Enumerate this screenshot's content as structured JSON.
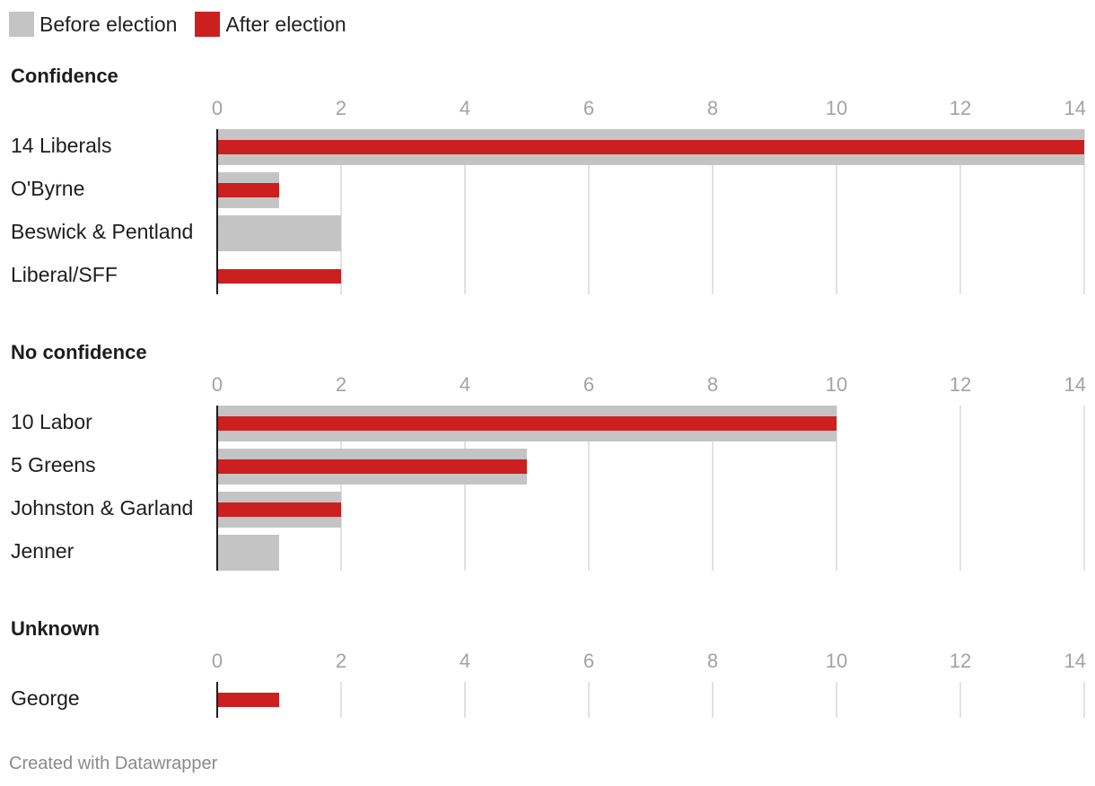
{
  "legend": {
    "before_label": "Before election",
    "after_label": "After election",
    "before_color": "#c4c4c4",
    "after_color": "#cc1f20"
  },
  "footer": "Created with Datawrapper",
  "chart_data": {
    "type": "bar",
    "orientation": "horizontal",
    "xlim": [
      0,
      14
    ],
    "ticks": [
      0,
      2,
      4,
      6,
      8,
      10,
      12,
      14
    ],
    "grid": true,
    "legend_position": "top-left",
    "series_names": [
      "Before election",
      "After election"
    ],
    "groups": [
      {
        "title": "Confidence",
        "rows": [
          {
            "label": "14 Liberals",
            "before": 14,
            "after": 14
          },
          {
            "label": "O'Byrne",
            "before": 1,
            "after": 1
          },
          {
            "label": "Beswick & Pentland",
            "before": 2,
            "after": 0
          },
          {
            "label": "Liberal/SFF",
            "before": 0,
            "after": 2
          }
        ]
      },
      {
        "title": "No confidence",
        "rows": [
          {
            "label": "10 Labor",
            "before": 10,
            "after": 10
          },
          {
            "label": "5 Greens",
            "before": 5,
            "after": 5
          },
          {
            "label": "Johnston & Garland",
            "before": 2,
            "after": 2
          },
          {
            "label": "Jenner",
            "before": 1,
            "after": 0
          }
        ]
      },
      {
        "title": "Unknown",
        "rows": [
          {
            "label": "George",
            "before": 0,
            "after": 1
          }
        ]
      }
    ]
  }
}
